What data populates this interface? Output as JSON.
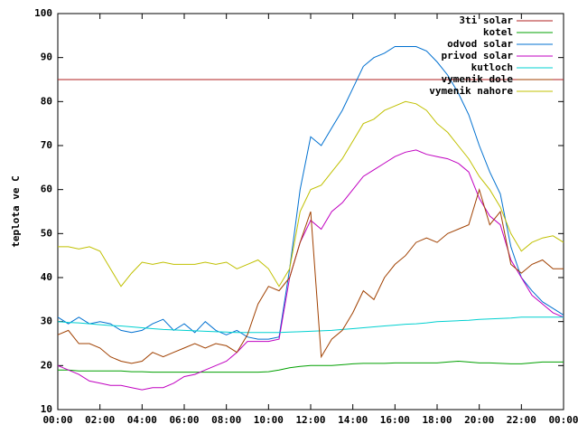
{
  "chart_data": {
    "type": "line",
    "y_label": "teplota ve C",
    "x": [
      0,
      0.5,
      1,
      1.5,
      2,
      2.5,
      3,
      3.5,
      4,
      4.5,
      5,
      5.5,
      6,
      6.5,
      7,
      7.5,
      8,
      8.5,
      9,
      9.5,
      10,
      10.5,
      11,
      11.5,
      12,
      12.5,
      13,
      13.5,
      14,
      14.5,
      15,
      15.5,
      16,
      16.5,
      17,
      17.5,
      18,
      18.5,
      19,
      19.5,
      20,
      20.5,
      21,
      21.5,
      22,
      22.5,
      23,
      23.5,
      24
    ],
    "xlim": [
      0,
      24
    ],
    "xticks": [
      {
        "value": 0,
        "label": "00:00"
      },
      {
        "value": 2,
        "label": "02:00"
      },
      {
        "value": 4,
        "label": "04:00"
      },
      {
        "value": 6,
        "label": "06:00"
      },
      {
        "value": 8,
        "label": "08:00"
      },
      {
        "value": 10,
        "label": "10:00"
      },
      {
        "value": 12,
        "label": "12:00"
      },
      {
        "value": 14,
        "label": "14:00"
      },
      {
        "value": 16,
        "label": "16:00"
      },
      {
        "value": 18,
        "label": "18:00"
      },
      {
        "value": 20,
        "label": "20:00"
      },
      {
        "value": 22,
        "label": "22:00"
      },
      {
        "value": 24,
        "label": "00:00"
      }
    ],
    "ylim": [
      10,
      100
    ],
    "yticks": [
      10,
      20,
      30,
      40,
      50,
      60,
      70,
      80,
      90,
      100
    ],
    "legend": "top-right",
    "series": [
      {
        "name": "3ti solar",
        "color": "#b02020",
        "values": [
          85,
          85,
          85,
          85,
          85,
          85,
          85,
          85,
          85,
          85,
          85,
          85,
          85,
          85,
          85,
          85,
          85,
          85,
          85,
          85,
          85,
          85,
          85,
          85,
          85,
          85,
          85,
          85,
          85,
          85,
          85,
          85,
          85,
          85,
          85,
          85,
          85,
          85,
          85,
          85,
          85,
          85,
          85,
          85,
          85,
          85,
          85,
          85,
          85
        ]
      },
      {
        "name": "kotel",
        "color": "#00a000",
        "values": [
          19,
          19,
          18.8,
          18.8,
          18.8,
          18.8,
          18.8,
          18.6,
          18.6,
          18.5,
          18.5,
          18.5,
          18.5,
          18.5,
          18.5,
          18.5,
          18.5,
          18.5,
          18.5,
          18.5,
          18.6,
          19,
          19.5,
          19.8,
          20,
          20,
          20,
          20.2,
          20.4,
          20.5,
          20.5,
          20.5,
          20.6,
          20.6,
          20.6,
          20.6,
          20.6,
          20.8,
          21,
          20.8,
          20.6,
          20.6,
          20.5,
          20.4,
          20.4,
          20.6,
          20.8,
          20.8,
          20.8
        ]
      },
      {
        "name": "odvod solar",
        "color": "#0070d0",
        "values": [
          31,
          29.5,
          31,
          29.5,
          30,
          29.5,
          28,
          27.5,
          28,
          29.5,
          30.5,
          28,
          29.5,
          27.5,
          30,
          28,
          27,
          28,
          26.5,
          26,
          26,
          26.5,
          42,
          60,
          72,
          70,
          74,
          78,
          83,
          88,
          90,
          91,
          92.5,
          92.5,
          92.5,
          91.5,
          89,
          86,
          82,
          77,
          70,
          64,
          59,
          47,
          40,
          37,
          34.5,
          33,
          31.5
        ]
      },
      {
        "name": "privod solar",
        "color": "#c000c0",
        "values": [
          20,
          19,
          18,
          16.5,
          16,
          15.5,
          15.5,
          15,
          14.5,
          15,
          15,
          16,
          17.5,
          18,
          19,
          20,
          21,
          23,
          25.5,
          25.5,
          25.5,
          26,
          40,
          48,
          53,
          51,
          55,
          57,
          60,
          63,
          64.5,
          66,
          67.5,
          68.5,
          69,
          68,
          67.5,
          67,
          66,
          64,
          58,
          54,
          52,
          44,
          40,
          36,
          34,
          32,
          31
        ]
      },
      {
        "name": "kutloch",
        "color": "#00d0d0",
        "values": [
          30,
          29.8,
          29.7,
          29.5,
          29.3,
          29.1,
          29,
          28.8,
          28.6,
          28.4,
          28.2,
          28.1,
          28,
          27.9,
          27.8,
          27.7,
          27.6,
          27.5,
          27.5,
          27.5,
          27.5,
          27.5,
          27.6,
          27.7,
          27.8,
          27.9,
          28,
          28.2,
          28.4,
          28.6,
          28.8,
          29,
          29.2,
          29.4,
          29.5,
          29.7,
          30,
          30.1,
          30.2,
          30.3,
          30.5,
          30.6,
          30.7,
          30.8,
          31,
          31,
          31,
          31,
          31
        ]
      },
      {
        "name": "vymenik dole",
        "color": "#a04000",
        "values": [
          27,
          28,
          25,
          25,
          24,
          22,
          21,
          20.5,
          21,
          23,
          22,
          23,
          24,
          25,
          24,
          25,
          24.5,
          23,
          27,
          34,
          38,
          37,
          40,
          48,
          55,
          22,
          26,
          28,
          32,
          37,
          35,
          40,
          43,
          45,
          48,
          49,
          48,
          50,
          51,
          52,
          60,
          52,
          55,
          43,
          41,
          43,
          44,
          42,
          42
        ]
      },
      {
        "name": "vymenik nahore",
        "color": "#c0c000",
        "values": [
          47,
          47,
          46.5,
          47,
          46,
          42,
          38,
          41,
          43.5,
          43,
          43.5,
          43,
          43,
          43,
          43.5,
          43,
          43.5,
          42,
          43,
          44,
          42,
          38,
          42,
          55,
          60,
          61,
          64,
          67,
          71,
          75,
          76,
          78,
          79,
          80,
          79.5,
          78,
          75,
          73,
          70,
          67,
          63,
          60,
          56,
          50,
          46,
          48,
          49,
          49.5,
          48
        ]
      }
    ]
  }
}
